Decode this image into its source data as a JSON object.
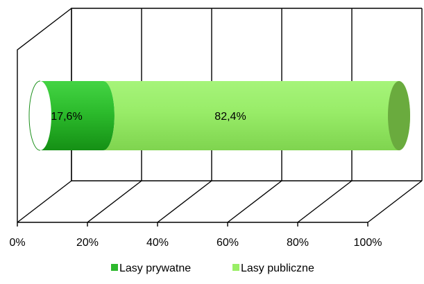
{
  "chart_data": {
    "type": "bar",
    "orientation": "horizontal",
    "stacked": "percent",
    "style": "3d-cylinder",
    "categories": [
      ""
    ],
    "series": [
      {
        "name": "Lasy prywatne",
        "values": [
          17.6
        ],
        "label": "17,6%",
        "color": "#2db82d"
      },
      {
        "name": "Lasy publiczne",
        "values": [
          82.4
        ],
        "label": "82,4%",
        "color": "#99ee66"
      }
    ],
    "xticks": [
      "0%",
      "20%",
      "40%",
      "60%",
      "80%",
      "100%"
    ],
    "xlim": [
      0,
      100
    ],
    "grid": true,
    "legend": "bottom"
  }
}
